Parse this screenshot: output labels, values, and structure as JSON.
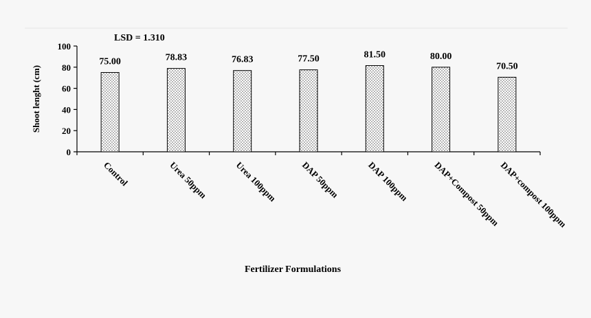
{
  "chart_data": {
    "type": "bar",
    "title": "",
    "annotation": "LSD = 1.310",
    "categories": [
      "Control",
      "Urea 50ppm",
      "Urea 100ppm",
      "DAP 50ppm",
      "DAP 100ppm",
      "DAP+Compost 50ppm",
      "DAP+compost 100ppm"
    ],
    "values": [
      75.0,
      78.83,
      76.83,
      77.5,
      81.5,
      80.0,
      70.5
    ],
    "data_labels": [
      "75.00",
      "78.83",
      "76.83",
      "77.50",
      "81.50",
      "80.00",
      "70.50"
    ],
    "xlabel": "Fertilizer Formulations",
    "ylabel": "Shoot lenght (cm)",
    "ylim": [
      0,
      100
    ],
    "yticks": [
      0,
      20,
      40,
      60,
      80,
      100
    ],
    "grid": false,
    "bar_pattern": "dotted",
    "colors": {
      "background": "#f7f7f7",
      "bar_fill": "#ffffff",
      "dots": "#000000",
      "axis": "#000000"
    }
  }
}
